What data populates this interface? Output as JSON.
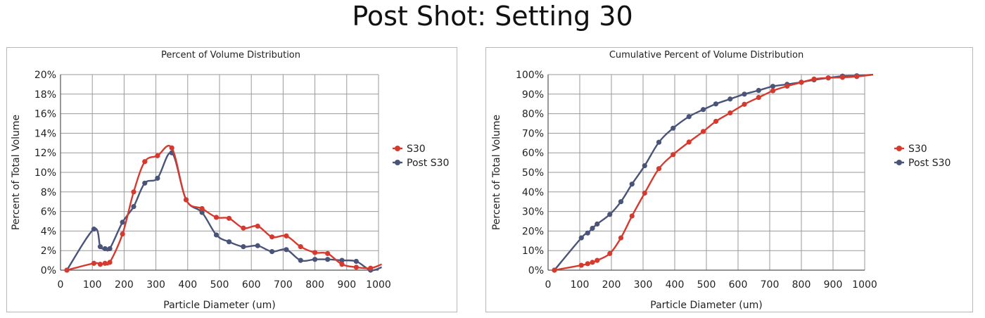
{
  "page": {
    "title": "Post Shot: Setting 30"
  },
  "colors": {
    "s30": "#d63a2f",
    "post_s30": "#4a5478",
    "grid": "#9a9a9a",
    "text": "#222222"
  },
  "chart_data": [
    {
      "type": "line",
      "title": "Percent of Volume Distribution",
      "xlabel": "Particle Diameter (um)",
      "ylabel": "Percent of Total Volume",
      "xlim": [
        0,
        1000
      ],
      "ylim": [
        0,
        20
      ],
      "xticks": [
        0,
        100,
        200,
        300,
        400,
        500,
        600,
        700,
        800,
        900,
        1000
      ],
      "yticks": [
        0,
        2,
        4,
        6,
        8,
        10,
        12,
        14,
        16,
        18,
        20
      ],
      "xtick_labels": [
        "0",
        "100",
        "200",
        "300",
        "400",
        "500",
        "600",
        "700",
        "800",
        "900",
        "1000"
      ],
      "ytick_labels": [
        "0%",
        "2%",
        "4%",
        "6%",
        "8%",
        "10%",
        "12%",
        "14%",
        "16%",
        "18%",
        "20%"
      ],
      "grid": true,
      "legend_position": "right",
      "series": [
        {
          "name": "S30",
          "color_key": "s30",
          "x": [
            20,
            105,
            125,
            140,
            155,
            195,
            230,
            265,
            305,
            350,
            395,
            445,
            490,
            530,
            575,
            620,
            665,
            710,
            755,
            800,
            840,
            885,
            930,
            975
          ],
          "y": [
            0.0,
            0.7,
            0.6,
            0.7,
            0.8,
            3.7,
            8.0,
            11.1,
            11.7,
            12.5,
            7.2,
            6.3,
            5.4,
            5.3,
            4.3,
            4.5,
            3.4,
            3.5,
            2.4,
            1.8,
            1.7,
            0.6,
            0.3,
            0.2
          ],
          "trail_x": [
            1010
          ],
          "trail_y": [
            0.6
          ]
        },
        {
          "name": "Post S30",
          "color_key": "post_s30",
          "x": [
            20,
            105,
            125,
            140,
            155,
            195,
            230,
            265,
            305,
            350,
            395,
            445,
            490,
            530,
            575,
            620,
            665,
            710,
            755,
            800,
            840,
            885,
            930,
            975
          ],
          "y": [
            0.0,
            4.2,
            2.4,
            2.2,
            2.2,
            4.9,
            6.5,
            8.9,
            9.4,
            12.0,
            7.2,
            5.9,
            3.6,
            2.9,
            2.4,
            2.5,
            1.9,
            2.1,
            1.0,
            1.1,
            1.1,
            1.0,
            0.9,
            0.0
          ],
          "trail_x": [
            1010
          ],
          "trail_y": [
            0.3
          ]
        }
      ]
    },
    {
      "type": "line",
      "title": "Cumulative Percent of Volume Distribution",
      "xlabel": "Particle Diameter (um)",
      "ylabel": "Percent of Total Volume",
      "xlim": [
        0,
        1000
      ],
      "ylim": [
        0,
        100
      ],
      "xticks": [
        0,
        100,
        200,
        300,
        400,
        500,
        600,
        700,
        800,
        900,
        1000
      ],
      "yticks": [
        0,
        10,
        20,
        30,
        40,
        50,
        60,
        70,
        80,
        90,
        100
      ],
      "xtick_labels": [
        "0",
        "100",
        "200",
        "300",
        "400",
        "500",
        "600",
        "700",
        "800",
        "900",
        "1000"
      ],
      "ytick_labels": [
        "0%",
        "10%",
        "20%",
        "30%",
        "40%",
        "50%",
        "60%",
        "70%",
        "80%",
        "90%",
        "100%"
      ],
      "grid": true,
      "legend_position": "right",
      "series": [
        {
          "name": "S30",
          "color_key": "s30",
          "x": [
            20,
            105,
            125,
            140,
            155,
            195,
            230,
            265,
            305,
            350,
            395,
            445,
            490,
            530,
            575,
            620,
            665,
            710,
            755,
            800,
            840,
            885,
            930,
            975
          ],
          "y": [
            0,
            2.5,
            3.3,
            4.0,
            5.0,
            8.5,
            16.5,
            27.7,
            39.4,
            51.9,
            59.1,
            65.5,
            70.9,
            76.1,
            80.4,
            84.8,
            88.3,
            91.7,
            94.1,
            96.0,
            97.7,
            98.3,
            98.6,
            99.0
          ],
          "trail_x": [
            1030
          ],
          "trail_y": [
            100
          ]
        },
        {
          "name": "Post S30",
          "color_key": "post_s30",
          "x": [
            20,
            105,
            125,
            140,
            155,
            195,
            230,
            265,
            305,
            350,
            395,
            445,
            490,
            530,
            575,
            620,
            665,
            710,
            755,
            800,
            840,
            885,
            930,
            975
          ],
          "y": [
            0,
            16.5,
            19.0,
            21.4,
            23.6,
            28.5,
            35.0,
            44.0,
            53.4,
            65.4,
            72.6,
            78.5,
            82.1,
            85.0,
            87.5,
            90.0,
            91.9,
            94.0,
            95.0,
            96.1,
            97.3,
            98.3,
            99.2,
            99.4
          ],
          "trail_x": [
            1030
          ],
          "trail_y": [
            100
          ]
        }
      ]
    }
  ]
}
